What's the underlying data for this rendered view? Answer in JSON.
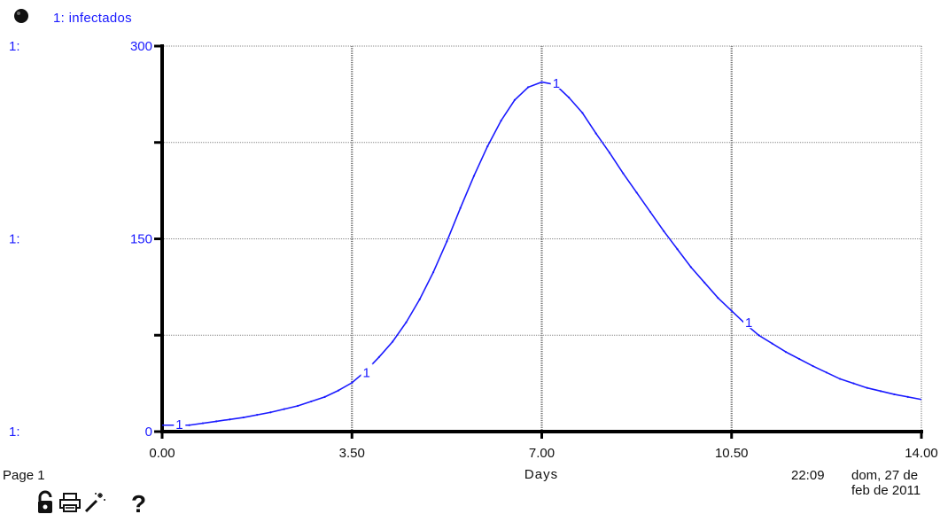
{
  "legend": {
    "marker_icon": "black-ball-icon",
    "label": "1: infectados",
    "color": "#1a1aff"
  },
  "axis_scale_labels": [
    {
      "prefix": "1:",
      "value": "300"
    },
    {
      "prefix": "1:",
      "value": "150"
    },
    {
      "prefix": "1:",
      "value": "0"
    }
  ],
  "footer": {
    "page": "Page 1",
    "time": "22:09",
    "date": "dom, 27 de feb de 2011"
  },
  "toolbar": {
    "icons": [
      "lock-open-icon",
      "printer-icon",
      "magic-wand-icon",
      "help-icon"
    ],
    "help_glyph": "?"
  },
  "chart_data": {
    "type": "line",
    "title": "",
    "xlabel": "Days",
    "ylabel": "",
    "xlim": [
      0,
      14
    ],
    "ylim": [
      0,
      300
    ],
    "x_ticks": [
      "0.00",
      "3.50",
      "7.00",
      "10.50",
      "14.00"
    ],
    "y_ticks": [
      "0",
      "150",
      "300"
    ],
    "grid": true,
    "series_marker_label": "1",
    "series_color": "#1a1aff",
    "series": [
      {
        "name": "infectados",
        "x": [
          0,
          0.5,
          1,
          1.5,
          2,
          2.5,
          3,
          3.25,
          3.5,
          3.75,
          4,
          4.25,
          4.5,
          4.75,
          5,
          5.25,
          5.5,
          5.75,
          6,
          6.25,
          6.5,
          6.75,
          7,
          7.25,
          7.5,
          7.75,
          8,
          8.25,
          8.5,
          8.75,
          9,
          9.25,
          9.5,
          9.75,
          10,
          10.25,
          10.5,
          10.75,
          11,
          11.5,
          12,
          12.5,
          13,
          13.5,
          14
        ],
        "values": [
          5,
          5,
          8,
          11,
          15,
          20,
          27,
          32,
          38,
          47,
          58,
          70,
          85,
          103,
          124,
          148,
          174,
          199,
          222,
          242,
          258,
          268,
          272,
          270,
          260,
          248,
          232,
          217,
          201,
          186,
          171,
          156,
          142,
          128,
          116,
          104,
          94,
          84,
          75,
          62,
          51,
          41,
          34,
          29,
          25
        ]
      }
    ],
    "series_markers_x": [
      0.25,
      3.7,
      7.2,
      10.75
    ]
  }
}
